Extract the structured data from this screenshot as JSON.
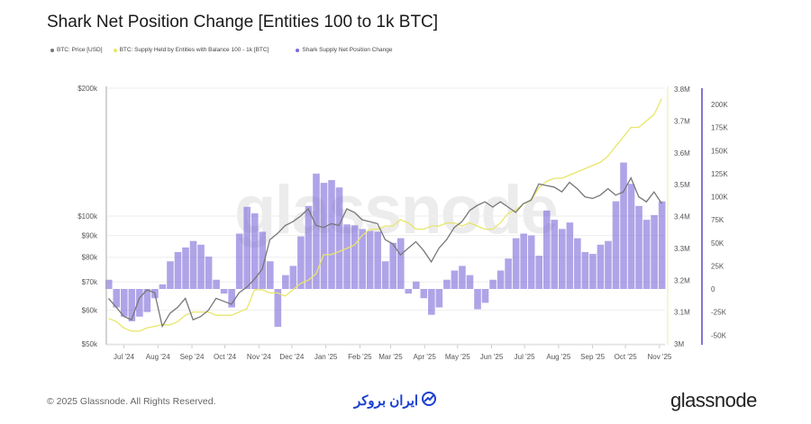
{
  "title": "Shark Net Position Change [Entities 100 to 1k BTC]",
  "legend": [
    {
      "label": "BTC: Price [USD]",
      "color": "#777777"
    },
    {
      "label": "BTC: Supply Held by Entities with Balance 100 - 1k [BTC]",
      "color": "#e8e66a"
    },
    {
      "label": "Shark Supply Net Position Change",
      "color": "#7b68d9"
    }
  ],
  "watermark": "glassnode",
  "footer": {
    "copyright": "© 2025 Glassnode. All Rights Reserved.",
    "partner_logo": "ایران بروکر",
    "brand_logo": "glassnode"
  },
  "chart_data": {
    "type": "bar+line",
    "title": "Shark Net Position Change [Entities 100 to 1k BTC]",
    "x_tick_labels": [
      "Jul '24",
      "Aug '24",
      "Sep '24",
      "Oct '24",
      "Nov '24",
      "Dec '24",
      "Jan '25",
      "Feb '25",
      "Mar '25",
      "Apr '25",
      "May '25",
      "Jun '25",
      "Jul '25",
      "Aug '25",
      "Sep '25",
      "Oct '25",
      "Nov '25"
    ],
    "price_axis": {
      "scale": "log",
      "ticks": [
        "$50k",
        "$60k",
        "$70k",
        "$80k",
        "$90k",
        "$100k",
        "$200k"
      ],
      "range": [
        50000,
        200000
      ]
    },
    "supply_axis": {
      "ticks": [
        "3M",
        "3.1M",
        "3.2M",
        "3.3M",
        "3.4M",
        "3.5M",
        "3.6M",
        "3.7M",
        "3.8M"
      ],
      "range": [
        3000000,
        3800000
      ]
    },
    "net_axis": {
      "ticks": [
        "-50K",
        "-25K",
        "0",
        "25K",
        "50K",
        "75K",
        "100K",
        "125K",
        "150K",
        "175K",
        "200K"
      ],
      "range": [
        -50000,
        210000
      ]
    },
    "grid": "horizontal",
    "legend_position": "top-left",
    "x": [
      "2024-06-17",
      "2024-06-24",
      "2024-07-01",
      "2024-07-08",
      "2024-07-15",
      "2024-07-22",
      "2024-07-29",
      "2024-08-05",
      "2024-08-12",
      "2024-08-19",
      "2024-08-26",
      "2024-09-02",
      "2024-09-09",
      "2024-09-16",
      "2024-09-23",
      "2024-09-30",
      "2024-10-07",
      "2024-10-14",
      "2024-10-21",
      "2024-10-28",
      "2024-11-04",
      "2024-11-11",
      "2024-11-18",
      "2024-11-25",
      "2024-12-02",
      "2024-12-09",
      "2024-12-16",
      "2024-12-23",
      "2024-12-30",
      "2025-01-06",
      "2025-01-13",
      "2025-01-20",
      "2025-01-27",
      "2025-02-03",
      "2025-02-10",
      "2025-02-17",
      "2025-02-24",
      "2025-03-03",
      "2025-03-10",
      "2025-03-17",
      "2025-03-24",
      "2025-03-31",
      "2025-04-07",
      "2025-04-14",
      "2025-04-21",
      "2025-04-28",
      "2025-05-05",
      "2025-05-12",
      "2025-05-19",
      "2025-05-26",
      "2025-06-02",
      "2025-06-09",
      "2025-06-16",
      "2025-06-23",
      "2025-06-30",
      "2025-07-07",
      "2025-07-14",
      "2025-07-21",
      "2025-07-28",
      "2025-08-04",
      "2025-08-11",
      "2025-08-18",
      "2025-08-25",
      "2025-09-01",
      "2025-09-08",
      "2025-09-15",
      "2025-09-22",
      "2025-09-29",
      "2025-10-06",
      "2025-10-13",
      "2025-10-20",
      "2025-10-27",
      "2025-11-03"
    ],
    "series": [
      {
        "name": "BTC: Price [USD]",
        "type": "line",
        "axis": "price",
        "color": "#777777",
        "values": [
          64000,
          61000,
          58000,
          57000,
          64000,
          67000,
          66000,
          55000,
          59000,
          61000,
          64000,
          57000,
          58000,
          60000,
          64000,
          63000,
          62000,
          66000,
          68000,
          71000,
          75000,
          88000,
          91000,
          95000,
          97000,
          100000,
          104000,
          95000,
          94000,
          96000,
          95000,
          104000,
          102000,
          98000,
          97000,
          96000,
          88000,
          86000,
          81000,
          84000,
          87000,
          83000,
          78000,
          84000,
          88000,
          94000,
          97000,
          103000,
          106000,
          108000,
          105000,
          108000,
          105000,
          102000,
          107000,
          109000,
          119000,
          118000,
          117000,
          114000,
          120000,
          116000,
          111000,
          110000,
          112000,
          116000,
          112000,
          114000,
          123000,
          111000,
          108000,
          114000,
          107000
        ]
      },
      {
        "name": "BTC: Supply Held by Entities with Balance 100 - 1k [BTC]",
        "type": "line",
        "axis": "supply",
        "color": "#e8e66a",
        "values": [
          3080000,
          3070000,
          3050000,
          3040000,
          3040000,
          3050000,
          3055000,
          3060000,
          3060000,
          3070000,
          3090000,
          3100000,
          3100000,
          3100000,
          3090000,
          3090000,
          3090000,
          3100000,
          3110000,
          3170000,
          3170000,
          3160000,
          3160000,
          3150000,
          3170000,
          3190000,
          3200000,
          3220000,
          3280000,
          3280000,
          3290000,
          3300000,
          3310000,
          3340000,
          3360000,
          3360000,
          3370000,
          3370000,
          3390000,
          3380000,
          3360000,
          3360000,
          3370000,
          3370000,
          3380000,
          3380000,
          3370000,
          3380000,
          3370000,
          3360000,
          3360000,
          3380000,
          3410000,
          3420000,
          3440000,
          3450000,
          3490000,
          3510000,
          3520000,
          3520000,
          3530000,
          3540000,
          3550000,
          3560000,
          3570000,
          3590000,
          3620000,
          3650000,
          3680000,
          3680000,
          3700000,
          3720000,
          3770000
        ]
      },
      {
        "name": "Shark Supply Net Position Change",
        "type": "bar",
        "axis": "net",
        "color": "#7b68d9",
        "values": [
          10000,
          -20000,
          -30000,
          -35000,
          -30000,
          -25000,
          -10000,
          5000,
          30000,
          40000,
          45000,
          52000,
          48000,
          35000,
          10000,
          -5000,
          -20000,
          60000,
          89000,
          82000,
          62000,
          30000,
          -41000,
          15000,
          25000,
          57000,
          90000,
          125000,
          115000,
          118000,
          110000,
          70000,
          69000,
          65000,
          63000,
          62000,
          30000,
          50000,
          55000,
          -5000,
          8000,
          -10000,
          -28000,
          -20000,
          10000,
          20000,
          25000,
          15000,
          -22000,
          -15000,
          10000,
          20000,
          33000,
          55000,
          60000,
          58000,
          36000,
          85000,
          75000,
          65000,
          72000,
          55000,
          40000,
          38000,
          48000,
          52000,
          95000,
          137000,
          114000,
          90000,
          75000,
          80000,
          95000
        ]
      }
    ]
  }
}
